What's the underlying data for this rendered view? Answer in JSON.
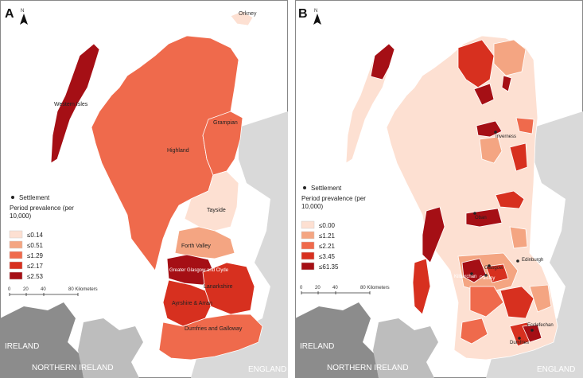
{
  "panel_a": {
    "letter": "A",
    "regions": [
      {
        "name": "Orkney"
      },
      {
        "name": "Western Isles"
      },
      {
        "name": "Grampian"
      },
      {
        "name": "Highland"
      },
      {
        "name": "Tayside"
      },
      {
        "name": "Forth Valley"
      },
      {
        "name": "Greater Glasgow and Clyde"
      },
      {
        "name": "Lanarkshire"
      },
      {
        "name": "Ayrshire & Arran"
      },
      {
        "name": "Dumfries and Galloway"
      }
    ],
    "legend": {
      "settlement_label": "Settlement",
      "title": "Period prevalence (per 10,000)",
      "classes": [
        {
          "label": "≤0.14",
          "color": "#fde0d2"
        },
        {
          "label": "≤0.51",
          "color": "#f4a582"
        },
        {
          "label": "≤1.29",
          "color": "#ef6a4c"
        },
        {
          "label": "≤2.17",
          "color": "#d7301f"
        },
        {
          "label": "≤2.53",
          "color": "#a50f15"
        }
      ]
    },
    "scalebar": {
      "ticks": [
        "0",
        "20",
        "40",
        "80 Kilometers"
      ]
    },
    "neighbors": {
      "ireland": "IRELAND",
      "northern_ireland": "NORTHERN IRELAND",
      "england": "ENGLAND"
    }
  },
  "panel_b": {
    "letter": "B",
    "settlements": [
      {
        "name": "Inverness"
      },
      {
        "name": "Oban"
      },
      {
        "name": "Glasgow"
      },
      {
        "name": "Kilbarchan"
      },
      {
        "name": "Paisley"
      },
      {
        "name": "Edinburgh"
      },
      {
        "name": "Dumfries"
      },
      {
        "name": "Ecclefechan"
      }
    ],
    "legend": {
      "settlement_label": "Settlement",
      "title": "Period prevalence (per 10,000)",
      "classes": [
        {
          "label": "≤0.00",
          "color": "#fde0d2"
        },
        {
          "label": "≤1.21",
          "color": "#f4a582"
        },
        {
          "label": "≤2.21",
          "color": "#ef6a4c"
        },
        {
          "label": "≤3.45",
          "color": "#d7301f"
        },
        {
          "label": "≤61.35",
          "color": "#a50f15"
        }
      ]
    },
    "scalebar": {
      "ticks": [
        "0",
        "20",
        "40",
        "80 Kilometers"
      ]
    },
    "neighbors": {
      "ireland": "IRELAND",
      "northern_ireland": "NORTHERN IRELAND",
      "england": "ENGLAND"
    }
  },
  "colors": {
    "sea": "#ffffff",
    "land_other": "#bdbdbd",
    "land_dark": "#8c8c8c",
    "border": "#ffffff"
  }
}
